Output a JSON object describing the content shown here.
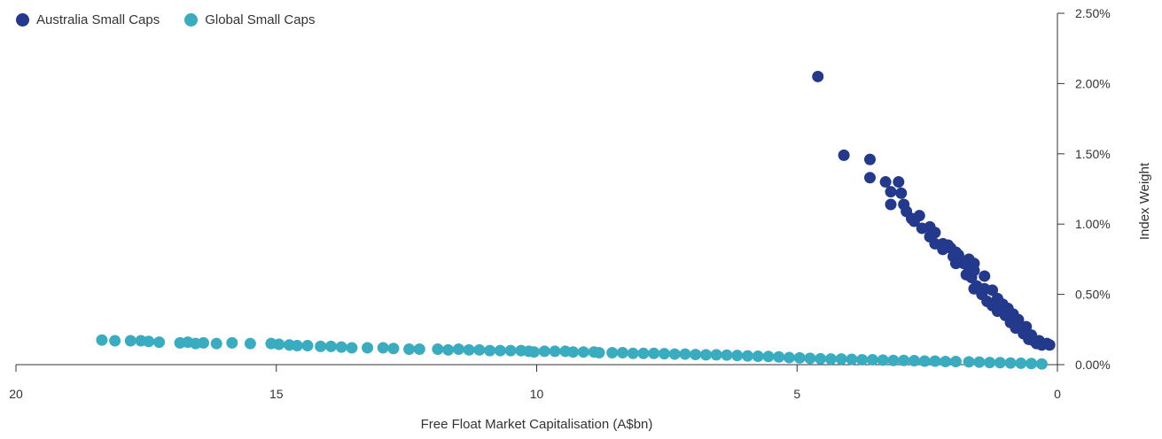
{
  "chart_data": {
    "type": "scatter",
    "xlabel": "Free Float Market Capitalisation (A$bn)",
    "ylabel": "Index Weight",
    "xlim": [
      20,
      0
    ],
    "ylim": [
      0,
      2.5
    ],
    "x_ticks": [
      "20",
      "15",
      "10",
      "5",
      "0"
    ],
    "y_ticks": [
      "0.00%",
      "0.50%",
      "1.00%",
      "1.50%",
      "2.00%",
      "2.50%"
    ],
    "x_reversed": true,
    "y_axis_position": "right",
    "legend_position": "top-left",
    "grid": false,
    "series": [
      {
        "name": "Australia Small Caps",
        "color": "#22398c",
        "points": [
          [
            4.6,
            2.05
          ],
          [
            4.1,
            1.49
          ],
          [
            3.6,
            1.46
          ],
          [
            3.6,
            1.33
          ],
          [
            3.3,
            1.3
          ],
          [
            3.05,
            1.3
          ],
          [
            3.2,
            1.23
          ],
          [
            3.0,
            1.22
          ],
          [
            3.2,
            1.14
          ],
          [
            2.95,
            1.14
          ],
          [
            2.9,
            1.09
          ],
          [
            2.65,
            1.06
          ],
          [
            2.8,
            1.04
          ],
          [
            2.75,
            1.02
          ],
          [
            2.6,
            0.97
          ],
          [
            2.45,
            0.98
          ],
          [
            2.35,
            0.94
          ],
          [
            2.45,
            0.91
          ],
          [
            2.35,
            0.86
          ],
          [
            2.2,
            0.86
          ],
          [
            2.1,
            0.85
          ],
          [
            2.05,
            0.83
          ],
          [
            2.2,
            0.82
          ],
          [
            1.95,
            0.8
          ],
          [
            2.0,
            0.77
          ],
          [
            1.9,
            0.78
          ],
          [
            1.95,
            0.72
          ],
          [
            1.7,
            0.75
          ],
          [
            1.8,
            0.72
          ],
          [
            1.6,
            0.72
          ],
          [
            1.7,
            0.69
          ],
          [
            1.6,
            0.67
          ],
          [
            1.75,
            0.64
          ],
          [
            1.65,
            0.62
          ],
          [
            1.4,
            0.63
          ],
          [
            1.55,
            0.56
          ],
          [
            1.6,
            0.54
          ],
          [
            1.4,
            0.54
          ],
          [
            1.25,
            0.53
          ],
          [
            1.45,
            0.5
          ],
          [
            1.35,
            0.45
          ],
          [
            1.15,
            0.47
          ],
          [
            1.25,
            0.42
          ],
          [
            1.05,
            0.43
          ],
          [
            1.15,
            0.38
          ],
          [
            0.95,
            0.4
          ],
          [
            1.0,
            0.35
          ],
          [
            0.85,
            0.36
          ],
          [
            0.9,
            0.3
          ],
          [
            0.75,
            0.32
          ],
          [
            0.8,
            0.26
          ],
          [
            0.6,
            0.27
          ],
          [
            0.65,
            0.22
          ],
          [
            0.5,
            0.21
          ],
          [
            0.55,
            0.18
          ],
          [
            0.45,
            0.17
          ],
          [
            0.35,
            0.17
          ],
          [
            0.4,
            0.15
          ],
          [
            0.3,
            0.14
          ],
          [
            0.2,
            0.15
          ],
          [
            0.15,
            0.14
          ]
        ]
      },
      {
        "name": "Global Small Caps",
        "color": "#3aacc0",
        "points": [
          [
            18.35,
            0.175
          ],
          [
            18.1,
            0.17
          ],
          [
            17.8,
            0.17
          ],
          [
            17.6,
            0.17
          ],
          [
            17.45,
            0.165
          ],
          [
            17.25,
            0.16
          ],
          [
            16.85,
            0.155
          ],
          [
            16.7,
            0.16
          ],
          [
            16.55,
            0.15
          ],
          [
            16.4,
            0.155
          ],
          [
            16.15,
            0.15
          ],
          [
            15.85,
            0.155
          ],
          [
            15.5,
            0.15
          ],
          [
            15.1,
            0.15
          ],
          [
            14.95,
            0.145
          ],
          [
            14.75,
            0.14
          ],
          [
            14.6,
            0.135
          ],
          [
            14.4,
            0.135
          ],
          [
            14.15,
            0.13
          ],
          [
            13.95,
            0.13
          ],
          [
            13.75,
            0.125
          ],
          [
            13.55,
            0.12
          ],
          [
            13.25,
            0.12
          ],
          [
            12.95,
            0.12
          ],
          [
            12.75,
            0.115
          ],
          [
            12.45,
            0.11
          ],
          [
            12.25,
            0.11
          ],
          [
            11.9,
            0.11
          ],
          [
            11.7,
            0.105
          ],
          [
            11.5,
            0.11
          ],
          [
            11.3,
            0.105
          ],
          [
            11.1,
            0.105
          ],
          [
            10.9,
            0.1
          ],
          [
            10.7,
            0.1
          ],
          [
            10.5,
            0.1
          ],
          [
            10.3,
            0.1
          ],
          [
            10.15,
            0.095
          ],
          [
            10.05,
            0.09
          ],
          [
            9.85,
            0.095
          ],
          [
            9.65,
            0.095
          ],
          [
            9.45,
            0.095
          ],
          [
            9.3,
            0.09
          ],
          [
            9.1,
            0.09
          ],
          [
            8.9,
            0.09
          ],
          [
            8.8,
            0.085
          ],
          [
            8.55,
            0.085
          ],
          [
            8.35,
            0.085
          ],
          [
            8.15,
            0.08
          ],
          [
            7.95,
            0.08
          ],
          [
            7.75,
            0.08
          ],
          [
            7.55,
            0.078
          ],
          [
            7.35,
            0.075
          ],
          [
            7.15,
            0.075
          ],
          [
            6.95,
            0.072
          ],
          [
            6.75,
            0.07
          ],
          [
            6.55,
            0.07
          ],
          [
            6.35,
            0.068
          ],
          [
            6.15,
            0.065
          ],
          [
            5.95,
            0.062
          ],
          [
            5.75,
            0.06
          ],
          [
            5.55,
            0.058
          ],
          [
            5.35,
            0.055
          ],
          [
            5.15,
            0.05
          ],
          [
            4.95,
            0.048
          ],
          [
            4.75,
            0.045
          ],
          [
            4.55,
            0.042
          ],
          [
            4.35,
            0.04
          ],
          [
            4.15,
            0.04
          ],
          [
            3.95,
            0.038
          ],
          [
            3.75,
            0.035
          ],
          [
            3.55,
            0.035
          ],
          [
            3.35,
            0.032
          ],
          [
            3.15,
            0.03
          ],
          [
            2.95,
            0.03
          ],
          [
            2.75,
            0.028
          ],
          [
            2.55,
            0.025
          ],
          [
            2.35,
            0.025
          ],
          [
            2.15,
            0.022
          ],
          [
            1.95,
            0.022
          ],
          [
            1.7,
            0.02
          ],
          [
            1.5,
            0.018
          ],
          [
            1.3,
            0.015
          ],
          [
            1.1,
            0.014
          ],
          [
            0.9,
            0.012
          ],
          [
            0.7,
            0.01
          ],
          [
            0.5,
            0.008
          ],
          [
            0.3,
            0.005
          ]
        ]
      }
    ]
  }
}
